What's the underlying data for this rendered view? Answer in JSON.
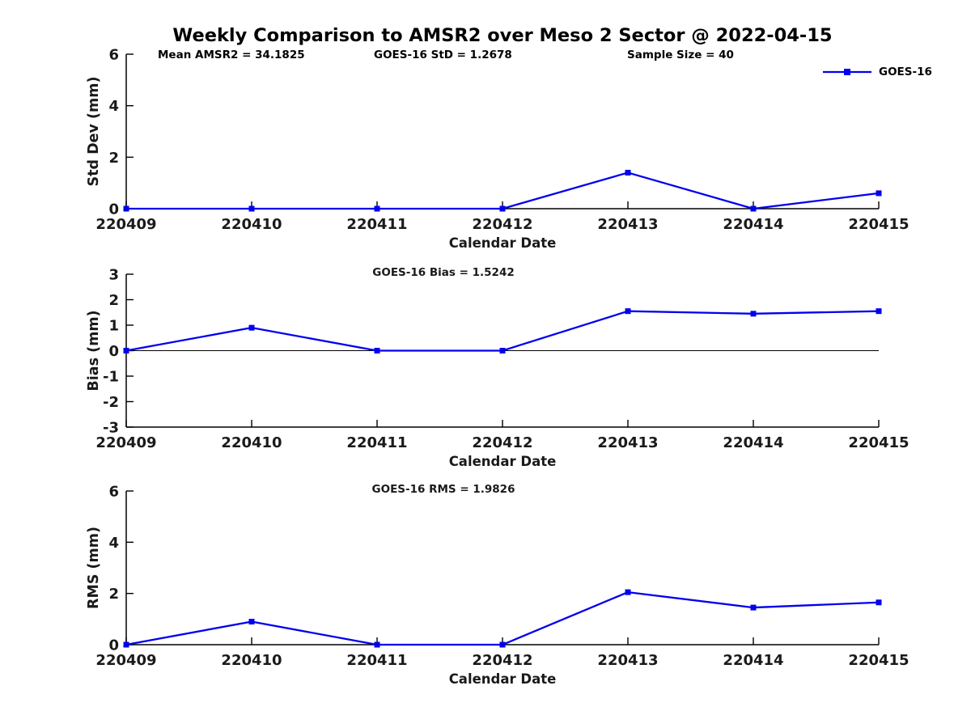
{
  "title": "Weekly Comparison to AMSR2 over Meso 2 Sector @ 2022-04-15",
  "annotations": {
    "mean_amsr2": "Mean AMSR2 = 34.1825",
    "goes16_std": "GOES-16 StD = 1.2678",
    "sample_size": "Sample Size = 40"
  },
  "legend": {
    "label": "GOES-16",
    "marker": "square"
  },
  "colors": {
    "line": "#0000ee",
    "axis": "#000000",
    "text": "#1a1a1a",
    "zero_line": "#000000"
  },
  "chart_data": [
    {
      "type": "line",
      "title": "",
      "xlabel": "Calendar Date",
      "ylabel": "Std Dev (mm)",
      "categories": [
        "220409",
        "220410",
        "220411",
        "220412",
        "220413",
        "220414",
        "220415"
      ],
      "series": [
        {
          "name": "GOES-16",
          "marker": "square",
          "values": [
            0,
            0,
            0,
            0,
            1.4,
            0,
            0.6
          ]
        }
      ],
      "ylim": [
        0,
        6
      ],
      "yticks": [
        0,
        2,
        4,
        6
      ],
      "zero_line": false,
      "grid": false,
      "legend_position": "top-right"
    },
    {
      "type": "line",
      "title": "GOES-16 Bias  = 1.5242",
      "xlabel": "Calendar Date",
      "ylabel": "Bias (mm)",
      "categories": [
        "220409",
        "220410",
        "220411",
        "220412",
        "220413",
        "220414",
        "220415"
      ],
      "series": [
        {
          "name": "GOES-16",
          "marker": "square",
          "values": [
            0,
            0.9,
            0,
            0,
            1.55,
            1.45,
            1.55
          ]
        }
      ],
      "ylim": [
        -3,
        3
      ],
      "yticks": [
        -3,
        -2,
        -1,
        0,
        1,
        2,
        3
      ],
      "zero_line": true,
      "grid": false,
      "legend_position": "none"
    },
    {
      "type": "line",
      "title": "GOES-16 RMS = 1.9826",
      "xlabel": "Calendar Date",
      "ylabel": "RMS (mm)",
      "categories": [
        "220409",
        "220410",
        "220411",
        "220412",
        "220413",
        "220414",
        "220415"
      ],
      "series": [
        {
          "name": "GOES-16",
          "marker": "square",
          "values": [
            0,
            0.9,
            0,
            0,
            2.05,
            1.45,
            1.65
          ]
        }
      ],
      "ylim": [
        0,
        6
      ],
      "yticks": [
        0,
        2,
        4,
        6
      ],
      "zero_line": false,
      "grid": false,
      "legend_position": "none"
    }
  ]
}
